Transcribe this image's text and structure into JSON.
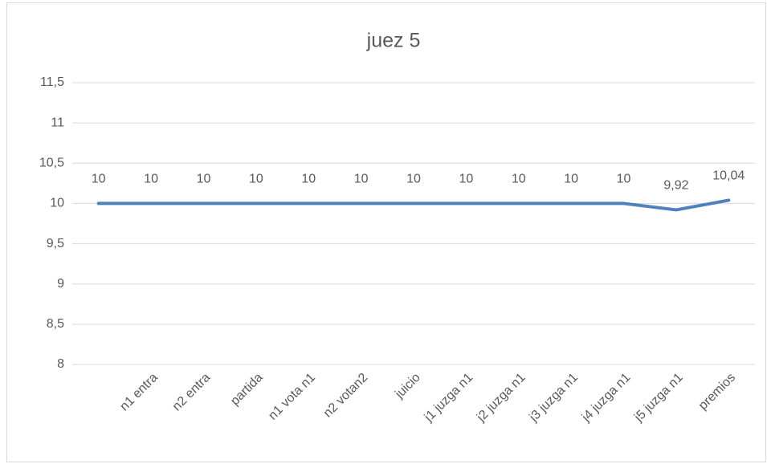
{
  "chart_data": {
    "type": "line",
    "title": "juez 5",
    "categories": [
      null,
      "n1 entra",
      "n2 entra",
      "partida",
      "n1 vota n1",
      "n2 votan2",
      "juicio",
      "j1 juzga n1",
      "j2 juzga n1",
      "j3 juzga n1",
      "j4 juzga n1",
      "j5 juzga n1",
      "premios"
    ],
    "values": [
      10,
      10,
      10,
      10,
      10,
      10,
      10,
      10,
      10,
      10,
      10,
      9.92,
      10.04
    ],
    "value_labels": [
      "10",
      "10",
      "10",
      "10",
      "10",
      "10",
      "10",
      "10",
      "10",
      "10",
      "10",
      "9,92",
      "10,04"
    ],
    "color": "#4f81bd",
    "ylim": [
      8,
      11.5
    ],
    "yticks": [
      8,
      {
        "value": 8.5,
        "label": "8,5"
      },
      9,
      {
        "value": 9.5,
        "label": "9,5"
      },
      10,
      {
        "value": 10.5,
        "label": "10,5"
      },
      11,
      {
        "value": 11.5,
        "label": "11,5"
      }
    ],
    "grid": true
  }
}
